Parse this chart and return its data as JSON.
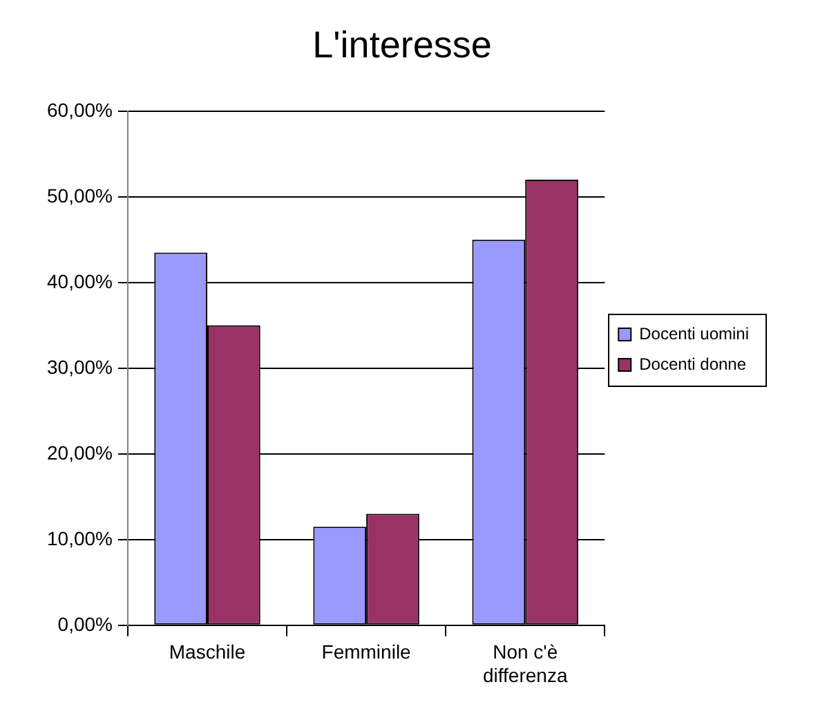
{
  "chart_data": {
    "type": "bar",
    "title": "L'interesse",
    "categories": [
      "Maschile",
      "Femminile",
      "Non c'è differenza"
    ],
    "series": [
      {
        "name": "Docenti uomini",
        "color": "#9999ff",
        "values": [
          43.5,
          11.5,
          45
        ]
      },
      {
        "name": "Docenti donne",
        "color": "#993366",
        "values": [
          35,
          13,
          52
        ]
      }
    ],
    "ylim": [
      0,
      60
    ],
    "yticks": [
      {
        "value": 0,
        "label": "0,00%"
      },
      {
        "value": 10,
        "label": "10,00%"
      },
      {
        "value": 20,
        "label": "20,00%"
      },
      {
        "value": 30,
        "label": "30,00%"
      },
      {
        "value": 40,
        "label": "40,00%"
      },
      {
        "value": 50,
        "label": "50,00%"
      },
      {
        "value": 60,
        "label": "60,00%"
      }
    ],
    "grid": "y",
    "legend": "right"
  }
}
